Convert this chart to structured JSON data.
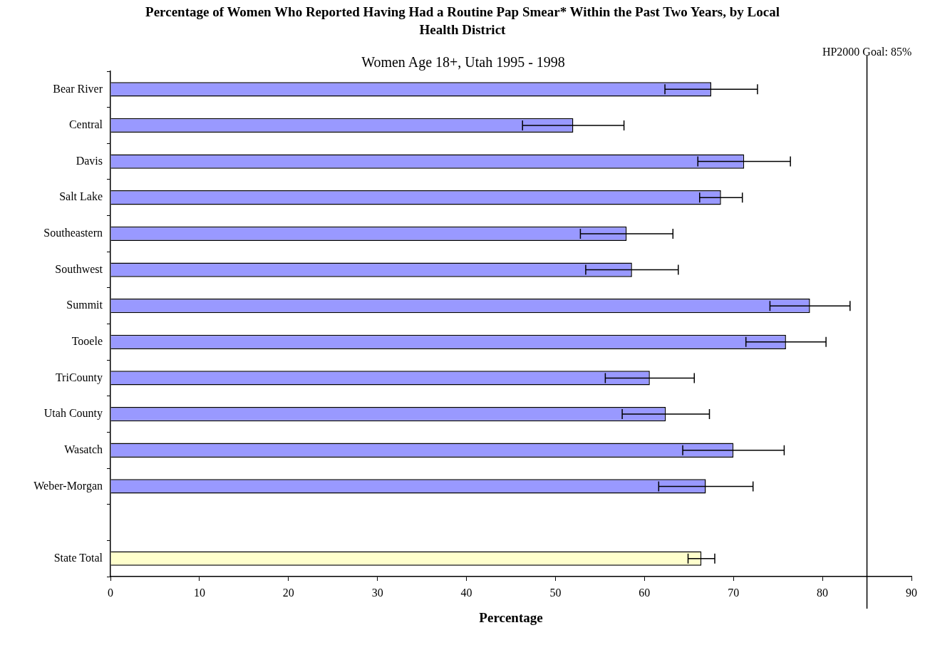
{
  "chart_data": {
    "type": "bar",
    "orientation": "horizontal",
    "title": "Percentage of Women Who Reported Having Had a Routine Pap Smear* Within the Past Two Years, by Local Health District",
    "subtitle": "Women Age 18+, Utah 1995 - 1998",
    "xlabel": "Percentage",
    "categories": [
      "Bear River",
      "Central",
      "Davis",
      "Salt Lake",
      "Southeastern",
      "Southwest",
      "Summit",
      "Tooele",
      "TriCounty",
      "Utah County",
      "Wasatch",
      "Weber-Morgan",
      null,
      "State Total"
    ],
    "values": [
      67.5,
      52.0,
      71.2,
      68.6,
      58.0,
      58.6,
      78.6,
      75.9,
      60.6,
      62.4,
      70.0,
      66.9,
      null,
      66.4
    ],
    "errors": [
      5.2,
      5.7,
      5.2,
      2.4,
      5.2,
      5.2,
      4.5,
      4.5,
      5.0,
      4.9,
      5.7,
      5.3,
      null,
      1.5
    ],
    "colors": [
      "#9999ff",
      "#9999ff",
      "#9999ff",
      "#9999ff",
      "#9999ff",
      "#9999ff",
      "#9999ff",
      "#9999ff",
      "#9999ff",
      "#9999ff",
      "#9999ff",
      "#9999ff",
      "#9999ff",
      "#ffffcc"
    ],
    "xlim": [
      0,
      90
    ],
    "xticks": [
      0,
      10,
      20,
      30,
      40,
      50,
      60,
      70,
      80,
      90
    ],
    "ref_lines": [
      {
        "axis": "x",
        "value": 85,
        "label": "HP2000 Goal: 85%",
        "color": "#000000"
      }
    ],
    "grid": false,
    "legend": false
  }
}
